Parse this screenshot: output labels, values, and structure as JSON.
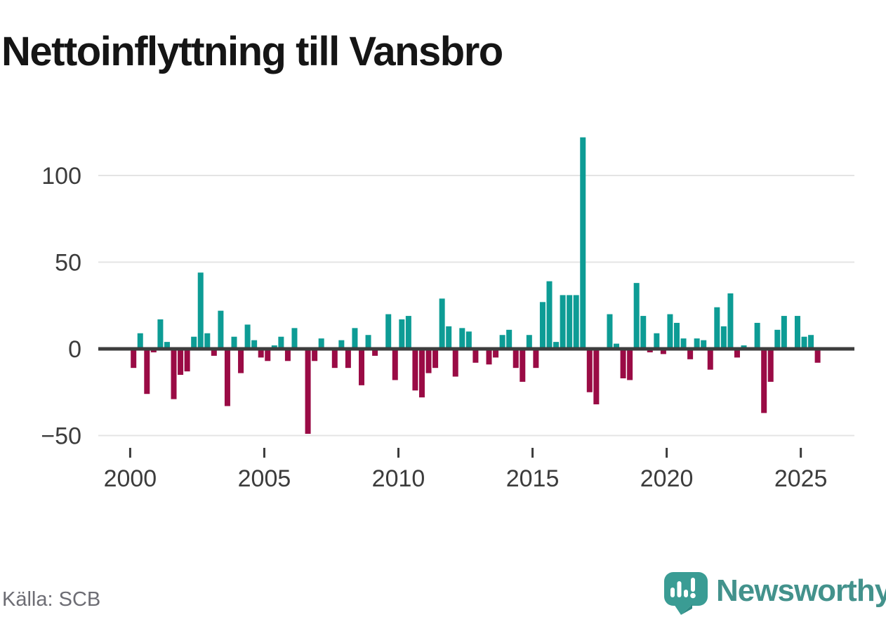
{
  "title": "Nettoinflyttning till Vansbro",
  "source": "Källa: SCB",
  "brand": {
    "name": "Newsworthy",
    "logo_icon": "speech-bubble-bar-chart-icon",
    "accent_color": "#3a9c94",
    "text_color": "#43928c"
  },
  "chart_data": {
    "type": "bar",
    "title": "Nettoinflyttning till Vansbro",
    "frequency": "quarterly",
    "x_start": "2000 Q1",
    "x_end": "2025 Q3",
    "xlabel": "",
    "ylabel": "",
    "ylim": [
      -55,
      130
    ],
    "grid": "horizontal",
    "legend": "none",
    "positive_color": "#0d9c95",
    "negative_color": "#9a0b45",
    "zero_line_color": "#3d3d3d",
    "gridline_color": "#e4e4e4",
    "tick_text_color": "#3c3c3c",
    "y_ticks": [
      100,
      50,
      0,
      -50
    ],
    "y_tick_labels": [
      "100",
      "50",
      "0",
      "−50"
    ],
    "x_tick_years": [
      2000,
      2005,
      2010,
      2015,
      2020,
      2025
    ],
    "values": [
      -11,
      9,
      -26,
      -2,
      17,
      4,
      -29,
      -15,
      -13,
      7,
      44,
      9,
      -4,
      22,
      -33,
      7,
      -14,
      14,
      5,
      -5,
      -7,
      2,
      7,
      -7,
      12,
      0,
      -49,
      -7,
      6,
      0,
      -11,
      5,
      -11,
      12,
      -21,
      8,
      -4,
      0,
      20,
      -18,
      17,
      19,
      -24,
      -28,
      -14,
      -11,
      29,
      13,
      -16,
      12,
      10,
      -8,
      0,
      -9,
      -5,
      8,
      11,
      -11,
      -19,
      8,
      -11,
      27,
      39,
      4,
      31,
      31,
      31,
      122,
      -25,
      -32,
      0,
      20,
      3,
      -17,
      -18,
      38,
      19,
      -2,
      9,
      -3,
      20,
      15,
      6,
      -6,
      6,
      5,
      -12,
      24,
      13,
      32,
      -5,
      2,
      0,
      15,
      -37,
      -19,
      11,
      19,
      0,
      19,
      7,
      8,
      -8
    ]
  }
}
